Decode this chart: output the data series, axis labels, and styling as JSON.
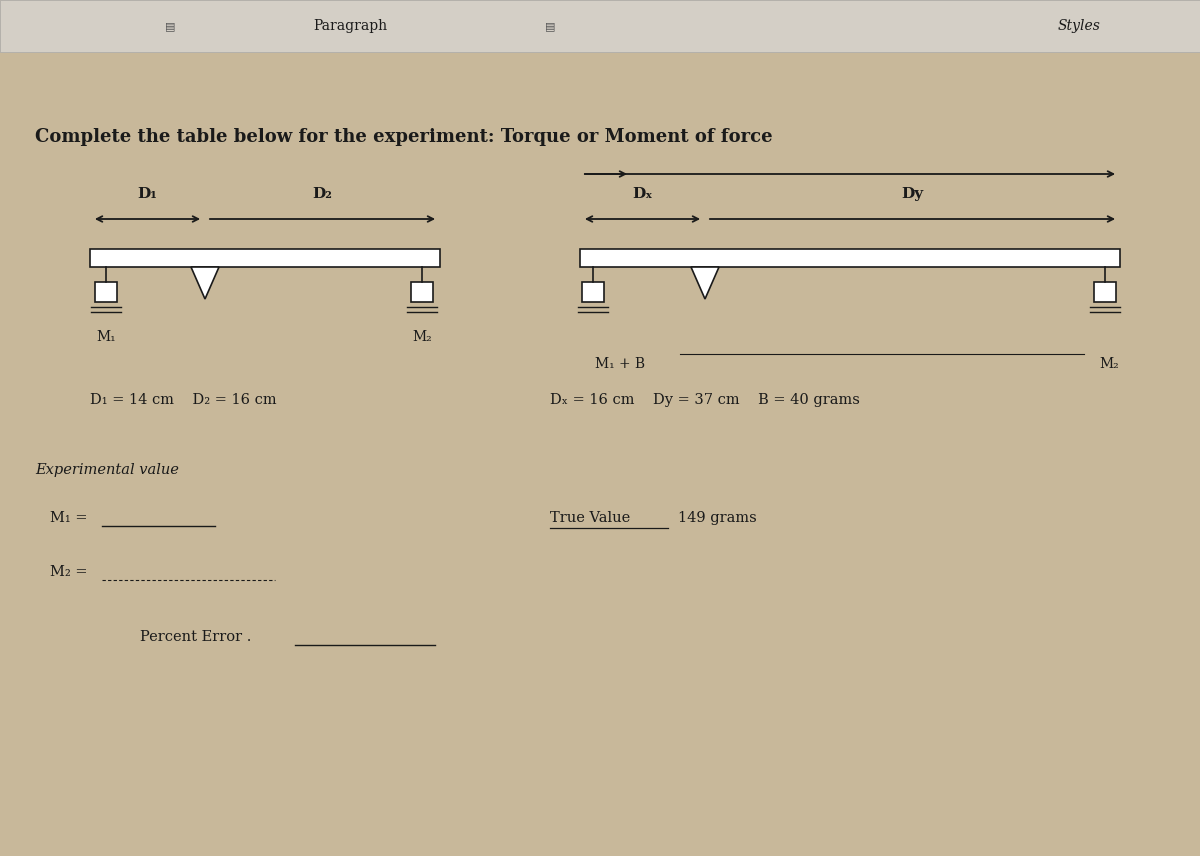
{
  "bg_color": "#c8b89a",
  "toolbar_bg": "#d4cfc6",
  "toolbar_text_paragraph": "Paragraph",
  "toolbar_text_styles": "Styles",
  "title": "Complete the table below for the experiment: Torque or Moment of force",
  "exp_label": "Experimental value",
  "text_color": "#1a1a1a",
  "line_color": "#1a1a1a"
}
